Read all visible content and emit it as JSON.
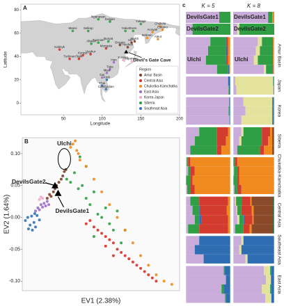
{
  "chart_data": [
    {
      "type": "scatter",
      "panel": "A",
      "basemap": true,
      "xlabel": "Longitude",
      "ylabel": "Latitude",
      "xlim": [
        -5,
        200
      ],
      "ylim": [
        -10,
        85
      ],
      "xticks": [
        50,
        100,
        150,
        200
      ],
      "yticks": [
        0,
        20,
        40,
        60,
        80
      ],
      "legend": "bottom-right",
      "legend_title": "Region",
      "series": [
        {
          "name": "Amur Basin",
          "color": "#7b3f2a",
          "x": [
            123,
            133,
            138,
            142
          ],
          "values": [
            50,
            48,
            52,
            53
          ],
          "labels": [
            "Oroqen",
            "Hezhen",
            "Ulchi",
            "Nivkh"
          ]
        },
        {
          "name": "Central Asia",
          "color": "#d7302a",
          "x": [
            45,
            58,
            70,
            75,
            85,
            105
          ],
          "values": [
            46,
            38,
            38,
            41,
            42,
            47
          ],
          "labels": [
            "Kalmyk",
            "Turkmen",
            "Tajik",
            "Kyrgyz",
            "Uyghur",
            "Mongola"
          ]
        },
        {
          "name": "Chukotka-Kamchatka",
          "color": "#f08a1e",
          "x": [
            175,
            178,
            165,
            158,
            172
          ],
          "values": [
            66,
            63,
            61,
            56,
            55
          ],
          "labels": [
            "Chukchi",
            "Eskimo",
            "Koryak",
            "Itelmen",
            "Aleut"
          ]
        },
        {
          "name": "East Asia",
          "color": "#9b6fc4",
          "x": [
            115,
            110,
            106,
            100
          ],
          "values": [
            35,
            29,
            26,
            22
          ],
          "labels": [
            "Han",
            "Tujia",
            "Miao",
            "Dai"
          ]
        },
        {
          "name": "Korea-Japan",
          "color": "#f2a7cf",
          "x": [
            127,
            138
          ],
          "values": [
            37,
            36
          ],
          "labels": [
            "Korean",
            "Japanese"
          ]
        },
        {
          "name": "Siberia",
          "color": "#2f9e44",
          "x": [
            95,
            110,
            150,
            140,
            130,
            82,
            62,
            95,
            86,
            108
          ],
          "values": [
            72,
            70,
            68,
            62,
            62,
            62,
            62,
            52,
            51,
            53
          ],
          "labels": [
            "Nganasan",
            "Dolgan",
            "Yukagir",
            "Even",
            "Yakut",
            "Selkup",
            "Mansi",
            "Tuvinian",
            "Altaian",
            "Buryat"
          ]
        },
        {
          "name": "Southeast Asia",
          "color": "#3372b8",
          "x": [
            105,
            100,
            106
          ],
          "values": [
            12,
            15,
            20
          ],
          "labels": [
            "Cambodian",
            "Thai",
            "Kinh"
          ]
        }
      ],
      "annotations": [
        {
          "text": "Devil's Gate Cave",
          "x": 131,
          "y": 44
        }
      ]
    },
    {
      "type": "scatter",
      "panel": "B",
      "xlabel": "EV1 (2.38%)",
      "ylabel": "EV2 (1.64%)",
      "xlim": [
        -0.062,
        0.14
      ],
      "ylim": [
        -0.115,
        0.125
      ],
      "yticks": [
        {
          "value": 0.1,
          "label": "0.10"
        },
        {
          "value": 0.05,
          "label": "0.05"
        },
        {
          "value": 0,
          "label": "0.00"
        },
        {
          "value": -0.05,
          "label": "-0.05"
        },
        {
          "value": -0.1,
          "label": "-0.10"
        }
      ],
      "series": [
        {
          "color": "#3372b8",
          "x": [
            -0.058,
            -0.055,
            -0.052,
            -0.05,
            -0.047,
            -0.045,
            -0.043,
            -0.04,
            -0.054,
            -0.049,
            -0.046
          ],
          "values": [
            -0.005,
            0,
            -0.012,
            0.002,
            -0.008,
            -0.015,
            0.003,
            -0.004,
            -0.018,
            -0.02,
            0.006
          ]
        },
        {
          "color": "#9b6fc4",
          "x": [
            -0.045,
            -0.042,
            -0.04,
            -0.038,
            -0.036,
            -0.034,
            -0.032,
            -0.03,
            -0.028
          ],
          "values": [
            0.01,
            0.015,
            0.012,
            0.02,
            0.016,
            0.022,
            0.018,
            0.025,
            0.02
          ]
        },
        {
          "color": "#f2a7cf",
          "x": [
            -0.04,
            -0.038,
            -0.036
          ],
          "values": [
            0.028,
            0.032,
            0.03
          ]
        },
        {
          "color": "#7b3f2a",
          "x": [
            -0.03,
            -0.027,
            -0.025,
            -0.022,
            -0.02,
            -0.018,
            -0.015,
            -0.012,
            -0.01,
            -0.008,
            -0.006
          ],
          "values": [
            0.03,
            0.036,
            0.033,
            0.04,
            0.045,
            0.05,
            0.055,
            0.06,
            0.065,
            0.072,
            0.075
          ]
        },
        {
          "color": "#2f9e44",
          "x": [
            -0.005,
            0,
            0.005,
            0.01,
            0.015,
            0.02,
            0.025,
            0.03,
            0.035,
            0.04,
            0.045,
            0.05,
            0.055,
            0.06,
            0.02,
            0.012,
            0.03,
            0.065,
            0.07
          ],
          "values": [
            0.06,
            0.055,
            0.07,
            0.045,
            0.05,
            0.03,
            0.02,
            0.04,
            0.005,
            0,
            0.015,
            -0.01,
            -0.02,
            0.01,
            0.08,
            0.095,
            -0.03,
            -0.04,
            -0.02
          ]
        },
        {
          "color": "#f08a1e",
          "x": [
            0,
            0.003,
            0.006,
            0.008,
            0.01,
            0.012,
            0.02,
            0.03,
            0.04,
            0.05,
            0.06,
            0.07,
            0.08,
            0.09,
            0.1,
            0.11,
            0.12,
            0.13
          ],
          "values": [
            0.11,
            0.115,
            0.12,
            0.105,
            0.1,
            0.09,
            0.08,
            0.06,
            0.04,
            0.02,
            0,
            -0.02,
            -0.04,
            -0.06,
            -0.075,
            -0.09,
            -0.1,
            -0.105
          ]
        },
        {
          "color": "#d7302a",
          "x": [
            0.02,
            0.025,
            0.03,
            0.035,
            0.04,
            0.045,
            0.05,
            0.055,
            0.06,
            0.065,
            0.07,
            0.075,
            0.08,
            0.085,
            0.09,
            0.095,
            0.1,
            0.105,
            0.11,
            0.045,
            0.055
          ],
          "values": [
            -0.01,
            -0.005,
            -0.015,
            -0.02,
            -0.025,
            -0.03,
            -0.035,
            -0.04,
            -0.05,
            -0.055,
            -0.06,
            -0.065,
            -0.07,
            -0.075,
            -0.08,
            -0.085,
            -0.09,
            -0.095,
            -0.1,
            -0.045,
            -0.06
          ]
        }
      ],
      "annotations": [
        {
          "text": "Ulchi",
          "x": -0.008,
          "y": 0.085
        },
        {
          "text": "DevilsGate2",
          "x": -0.02,
          "y": 0.05,
          "marker": "triangle"
        },
        {
          "text": "DevilsGate1",
          "x": -0.016,
          "y": 0.038,
          "marker": "triangle"
        }
      ]
    },
    {
      "type": "bar",
      "panel": "c",
      "title": "K = 5",
      "orientation": "horizontal",
      "stacked": true,
      "colors": [
        "#c9acd9",
        "#2f9e44",
        "#2f6db3",
        "#d33b2f",
        "#f08a1e"
      ],
      "samples": [
        {
          "name": "DevilsGate1",
          "values": [
            0.75,
            0.25,
            0,
            0,
            0
          ]
        },
        {
          "name": "DevilsGate2",
          "values": [
            0.15,
            0.85,
            0,
            0,
            0
          ]
        }
      ],
      "groups": [
        {
          "inner_label": "Ulchi",
          "rows": [
            [
              0.55,
              0.35,
              0.02,
              0.03,
              0.05
            ],
            [
              0.5,
              0.4,
              0.03,
              0.02,
              0.05
            ],
            [
              0.45,
              0.45,
              0.02,
              0.03,
              0.05
            ],
            [
              0.7,
              0.25,
              0.02,
              0.01,
              0.02
            ]
          ]
        },
        {
          "rows": [
            [
              0.95,
              0,
              0.05,
              0,
              0
            ],
            [
              0.96,
              0.01,
              0.03,
              0,
              0
            ]
          ]
        },
        {
          "rows": [
            [
              0.97,
              0.01,
              0.02,
              0,
              0
            ],
            [
              0.96,
              0.02,
              0.02,
              0,
              0
            ],
            [
              0.98,
              0,
              0.02,
              0,
              0
            ]
          ]
        },
        {
          "rows": [
            [
              0.3,
              0.4,
              0,
              0.25,
              0.05
            ],
            [
              0.2,
              0.5,
              0,
              0.2,
              0.1
            ],
            [
              0.1,
              0.6,
              0,
              0.1,
              0.2
            ]
          ]
        },
        {
          "rows": [
            [
              0.02,
              0.03,
              0,
              0.05,
              0.9
            ],
            [
              0.05,
              0.05,
              0,
              0.1,
              0.8
            ],
            [
              0,
              0.1,
              0,
              0.05,
              0.85
            ],
            [
              0.03,
              0.07,
              0,
              0.1,
              0.8
            ]
          ]
        },
        {
          "rows": [
            [
              0.1,
              0.2,
              0,
              0.65,
              0.05
            ],
            [
              0.15,
              0.15,
              0.02,
              0.6,
              0.08
            ],
            [
              0.2,
              0.1,
              0.05,
              0.6,
              0.05
            ],
            [
              0.05,
              0.25,
              0,
              0.65,
              0.05
            ]
          ]
        },
        {
          "rows": [
            [
              0.3,
              0,
              0.7,
              0,
              0
            ],
            [
              0.2,
              0,
              0.8,
              0,
              0
            ],
            [
              0.4,
              0,
              0.6,
              0,
              0
            ]
          ]
        },
        {
          "rows": [
            [
              0.85,
              0.02,
              0.13,
              0,
              0
            ],
            [
              0.9,
              0,
              0.1,
              0,
              0
            ],
            [
              0.8,
              0.05,
              0.15,
              0,
              0
            ],
            [
              0.88,
              0.02,
              0.1,
              0,
              0
            ]
          ]
        }
      ]
    },
    {
      "type": "bar",
      "title": "K = 8",
      "orientation": "horizontal",
      "stacked": true,
      "colors": [
        "#c9acd9",
        "#e3e39d",
        "#2f9e44",
        "#2f6db3",
        "#d33b2f",
        "#f08a1e",
        "#8a4a2a",
        "#2e6b3a"
      ],
      "samples": [
        {
          "name": "DevilsGate1",
          "values": [
            0.85,
            0,
            0.1,
            0,
            0,
            0.05,
            0,
            0
          ]
        },
        {
          "name": "DevilsGate2",
          "values": [
            0.1,
            0.05,
            0.85,
            0,
            0,
            0,
            0,
            0
          ]
        }
      ],
      "groups": [
        {
          "name": "Amur Basin",
          "inner_label": "Ulchi",
          "rows": [
            [
              0.6,
              0.1,
              0.25,
              0,
              0.02,
              0.03,
              0,
              0
            ],
            [
              0.55,
              0.1,
              0.3,
              0,
              0.02,
              0.03,
              0,
              0
            ],
            [
              0.5,
              0.1,
              0.35,
              0,
              0.02,
              0.03,
              0,
              0
            ],
            [
              0.75,
              0.05,
              0.17,
              0,
              0.01,
              0.02,
              0,
              0
            ]
          ]
        },
        {
          "name": "Japan",
          "rows": [
            [
              0.05,
              0.92,
              0.01,
              0.02,
              0,
              0,
              0,
              0
            ],
            [
              0.08,
              0.9,
              0,
              0.02,
              0,
              0,
              0,
              0
            ]
          ]
        },
        {
          "name": "Korea",
          "rows": [
            [
              0.25,
              0.7,
              0.02,
              0.03,
              0,
              0,
              0,
              0
            ],
            [
              0.3,
              0.65,
              0.02,
              0.03,
              0,
              0,
              0,
              0
            ],
            [
              0.2,
              0.75,
              0.02,
              0.03,
              0,
              0,
              0,
              0
            ]
          ]
        },
        {
          "name": "Siberia",
          "rows": [
            [
              0.2,
              0.05,
              0.45,
              0,
              0.2,
              0.05,
              0.05,
              0
            ],
            [
              0.15,
              0.05,
              0.5,
              0,
              0.15,
              0.1,
              0.05,
              0
            ],
            [
              0.1,
              0,
              0.55,
              0,
              0.1,
              0.2,
              0.05,
              0
            ]
          ]
        },
        {
          "name": "Chukotka-Kamchatka",
          "rows": [
            [
              0,
              0,
              0.05,
              0,
              0.05,
              0.9,
              0,
              0
            ],
            [
              0.02,
              0,
              0.08,
              0,
              0.05,
              0.85,
              0,
              0
            ],
            [
              0,
              0,
              0.1,
              0,
              0.05,
              0.85,
              0,
              0
            ],
            [
              0.03,
              0,
              0.07,
              0,
              0.1,
              0.8,
              0,
              0
            ]
          ]
        },
        {
          "name": "Central Asia",
          "rows": [
            [
              0.05,
              0.02,
              0.15,
              0,
              0.2,
              0.03,
              0.5,
              0.05
            ],
            [
              0.08,
              0.02,
              0.1,
              0,
              0.25,
              0.05,
              0.45,
              0.05
            ],
            [
              0.1,
              0.05,
              0.1,
              0.02,
              0.2,
              0.03,
              0.45,
              0.05
            ],
            [
              0.05,
              0,
              0.2,
              0,
              0.15,
              0.05,
              0.5,
              0.05
            ]
          ]
        },
        {
          "name": "Southeast Asia",
          "rows": [
            [
              0.2,
              0.05,
              0,
              0.75,
              0,
              0,
              0,
              0
            ],
            [
              0.15,
              0.05,
              0,
              0.8,
              0,
              0,
              0,
              0
            ],
            [
              0.3,
              0.05,
              0,
              0.65,
              0,
              0,
              0,
              0
            ]
          ]
        },
        {
          "name": "East Asia",
          "rows": [
            [
              0.75,
              0.15,
              0.02,
              0.08,
              0,
              0,
              0,
              0
            ],
            [
              0.8,
              0.12,
              0,
              0.08,
              0,
              0,
              0,
              0
            ],
            [
              0.7,
              0.2,
              0.02,
              0.08,
              0,
              0,
              0,
              0
            ],
            [
              0.78,
              0.15,
              0,
              0.07,
              0,
              0,
              0,
              0
            ]
          ]
        }
      ]
    }
  ]
}
